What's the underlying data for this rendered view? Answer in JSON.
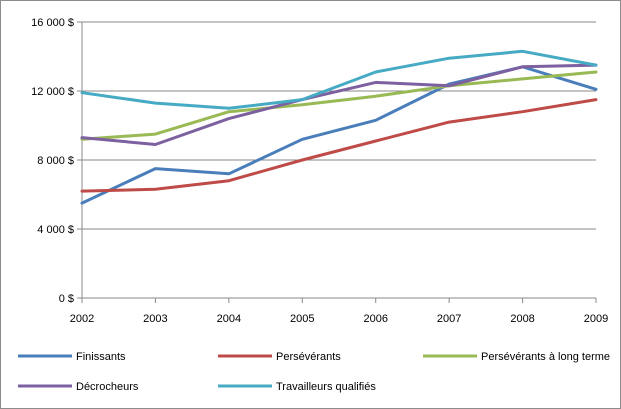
{
  "chart_data": {
    "type": "line",
    "title": "",
    "xlabel": "",
    "ylabel": "",
    "x": [
      "2002",
      "2003",
      "2004",
      "2005",
      "2006",
      "2007",
      "2008",
      "2009"
    ],
    "ylim": [
      0,
      16000
    ],
    "y_ticks": [
      0,
      4000,
      8000,
      12000,
      16000
    ],
    "y_tick_labels": [
      "0 $",
      "4 000 $",
      "8 000 $",
      "12 000 $",
      "16 000 $"
    ],
    "grid": "horizontal",
    "legend_position": "bottom",
    "series": [
      {
        "name": "Finissants",
        "color": "#4a7ebb",
        "values": [
          5500,
          7500,
          7200,
          9200,
          10300,
          12400,
          13400,
          12100
        ]
      },
      {
        "name": "Persévérants",
        "color": "#be4b48",
        "values": [
          6200,
          6300,
          6800,
          8000,
          9100,
          10200,
          10800,
          11500
        ]
      },
      {
        "name": "Persévérants à long terme",
        "color": "#98b954",
        "values": [
          9200,
          9500,
          10800,
          11200,
          11700,
          12300,
          12700,
          13100
        ]
      },
      {
        "name": "Décrocheurs",
        "color": "#7d60a0",
        "values": [
          9300,
          8900,
          10400,
          11500,
          12500,
          12300,
          13400,
          13500
        ]
      },
      {
        "name": "Travailleurs qualifiés",
        "color": "#46aac5",
        "values": [
          11900,
          11300,
          11000,
          11500,
          13100,
          13900,
          14300,
          13500
        ]
      }
    ]
  }
}
